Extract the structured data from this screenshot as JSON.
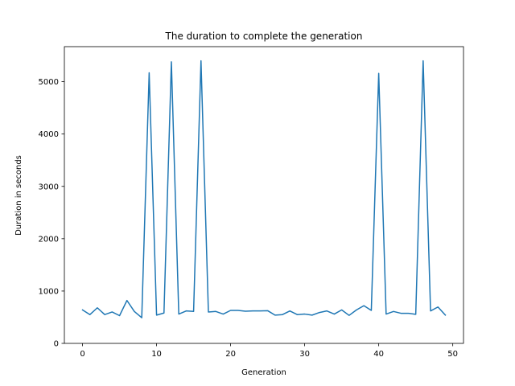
{
  "chart_data": {
    "type": "line",
    "title": "The duration to complete the generation",
    "xlabel": "Generation",
    "ylabel": "Duration in seconds",
    "xlim": [
      -2.45,
      51.45
    ],
    "ylim": [
      0,
      5670
    ],
    "xticks": [
      0,
      10,
      20,
      30,
      40,
      50
    ],
    "yticks": [
      0,
      1000,
      2000,
      3000,
      4000,
      5000
    ],
    "grid": false,
    "series": [
      {
        "color": "#1f77b4",
        "x": [
          0,
          1,
          2,
          3,
          4,
          5,
          6,
          7,
          8,
          9,
          10,
          11,
          12,
          13,
          14,
          15,
          16,
          17,
          18,
          19,
          20,
          21,
          22,
          23,
          24,
          25,
          26,
          27,
          28,
          29,
          30,
          31,
          32,
          33,
          34,
          35,
          36,
          37,
          38,
          39,
          40,
          41,
          42,
          43,
          44,
          45,
          46,
          47,
          48,
          49
        ],
        "y": [
          640,
          550,
          680,
          550,
          600,
          530,
          820,
          610,
          490,
          5170,
          540,
          580,
          5380,
          560,
          620,
          610,
          5400,
          600,
          610,
          560,
          630,
          630,
          615,
          620,
          620,
          625,
          540,
          550,
          620,
          550,
          560,
          540,
          590,
          620,
          560,
          640,
          535,
          640,
          720,
          630,
          5160,
          560,
          610,
          575,
          575,
          555,
          5400,
          620,
          695,
          540
        ]
      }
    ]
  }
}
